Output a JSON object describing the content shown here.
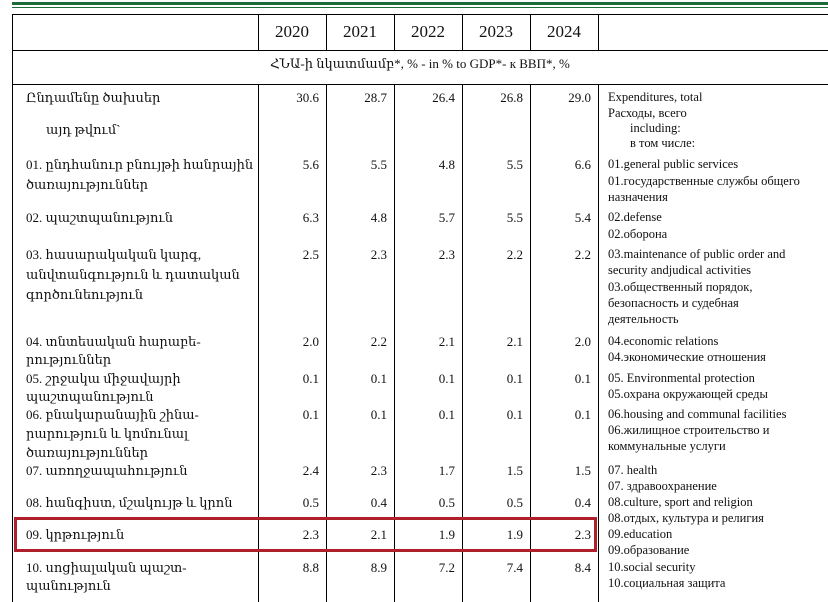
{
  "header": {
    "years": [
      "2020",
      "2021",
      "2022",
      "2023",
      "2024"
    ],
    "unit_line": "ՀՆԱ-ի նկատմամբ*, % - in % to GDP*- к ВВП*, %"
  },
  "rows": [
    {
      "hy": [
        "Ընդամենը ծախսեր"
      ],
      "values": [
        "30.6",
        "28.7",
        "26.4",
        "26.8",
        "29.0"
      ],
      "en": [
        "Expenditures, total",
        "Расходы, всего",
        "including:",
        "в том числе:"
      ]
    },
    {
      "hy": [
        "այդ թվում`"
      ]
    },
    {
      "hy": [
        "01. ընդհանուր բնույթի հանրային",
        "ծառայություններ"
      ],
      "values": [
        "5.6",
        "5.5",
        "4.8",
        "5.5",
        "6.6"
      ],
      "en": [
        "01.general public services",
        "01.государственные службы общего",
        "назначения"
      ]
    },
    {
      "hy": [
        "02. պաշտպանություն"
      ],
      "values": [
        "6.3",
        "4.8",
        "5.7",
        "5.5",
        "5.4"
      ],
      "en": [
        "02.defense",
        "02.оборона"
      ]
    },
    {
      "hy": [
        "03. հասարակական կարգ,",
        "անվտանգություն և դատական",
        "գործունեություն"
      ],
      "values": [
        "2.5",
        "2.3",
        "2.3",
        "2.2",
        "2.2"
      ],
      "en": [
        "03.maintenance of public order and",
        "security andjudical activities",
        "03.общественный порядок,",
        "безопасность и судебная",
        "деятельность"
      ]
    },
    {
      "hy": [
        "04. տնտեսական հարաբե-",
        "րություններ"
      ],
      "values": [
        "2.0",
        "2.2",
        "2.1",
        "2.1",
        "2.0"
      ],
      "en": [
        "04.economic relations",
        "04.экономические отношения"
      ]
    },
    {
      "hy": [
        "05. շրջակա միջավայրի",
        "պաշտպանություն"
      ],
      "values": [
        "0.1",
        "0.1",
        "0.1",
        "0.1",
        "0.1"
      ],
      "en": [
        "05. Environmental protection",
        "05.охрана окружающей среды"
      ]
    },
    {
      "hy": [
        "06. բնակարանային շինա-",
        "րարություն և կոմունալ",
        "ծառայություններ"
      ],
      "values": [
        "0.1",
        "0.1",
        "0.1",
        "0.1",
        "0.1"
      ],
      "en": [
        "06.housing and communal facilities",
        "06.жилищное строительство и",
        "коммунальные услуги"
      ]
    },
    {
      "hy": [
        "07. առողջապահություն"
      ],
      "values": [
        "2.4",
        "2.3",
        "1.7",
        "1.5",
        "1.5"
      ],
      "en": [
        "07. health",
        "07. здравоохранение"
      ]
    },
    {
      "hy": [
        "08. հանգիստ, մշակույթ և կրոն"
      ],
      "values": [
        "0.5",
        "0.4",
        "0.5",
        "0.5",
        "0.4"
      ],
      "en": [
        "08.culture, sport and religion",
        "08.отдых, культура и религия"
      ]
    },
    {
      "hy": [
        "09. կրթություն"
      ],
      "values": [
        "2.3",
        "2.1",
        "1.9",
        "1.9",
        "2.3"
      ],
      "en": [
        "09.education",
        "09.образование"
      ],
      "highlighted": true
    },
    {
      "hy": [
        "10. սոցիալական պաշտ-",
        "պանություն"
      ],
      "values": [
        "8.8",
        "8.9",
        "7.2",
        "7.4",
        "8.4"
      ],
      "en": [
        "10.social security",
        "10.социальная защита"
      ]
    }
  ],
  "colors": {
    "highlight": "#b0202c",
    "top_rule": "#1e6b3a"
  }
}
